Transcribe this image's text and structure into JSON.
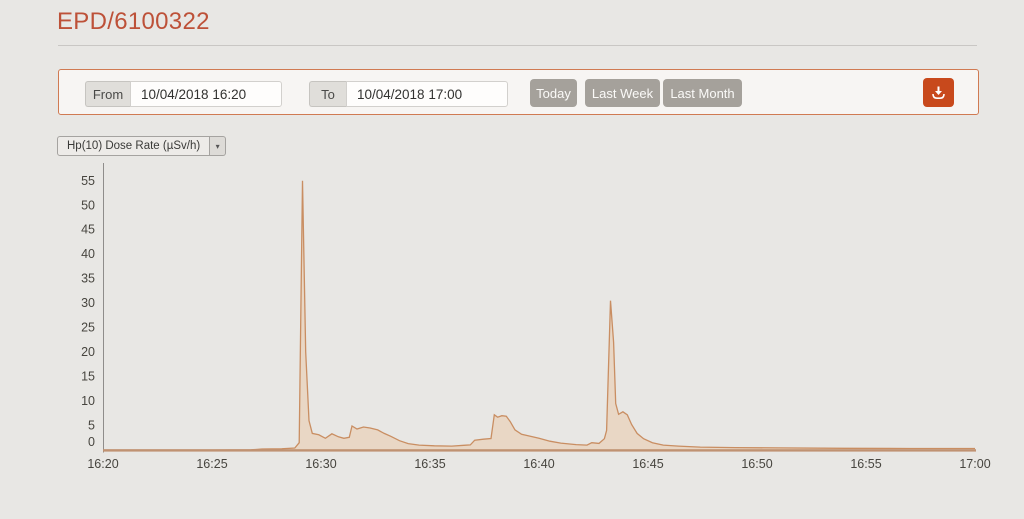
{
  "page": {
    "title": "EPD/6100322",
    "background_color": "#e8e7e4",
    "accent_color": "#bd5138"
  },
  "toolbar": {
    "border_color": "#d07a52",
    "from": {
      "label": "From",
      "value": "10/04/2018 16:20"
    },
    "to": {
      "label": "To",
      "value": "10/04/2018 17:00"
    },
    "buttons": [
      {
        "label": "Today"
      },
      {
        "label": "Last Week"
      },
      {
        "label": "Last Month"
      }
    ],
    "download": {
      "icon": "download-icon",
      "color": "#c8491c"
    }
  },
  "series_selector": {
    "value": "Hp(10) Dose Rate (µSv/h)",
    "arrow_icon": "chevron-down-icon"
  },
  "chart_data": {
    "type": "area",
    "title": "",
    "xlabel": "",
    "ylabel": "Hp(10) Dose Rate (µSv/h)",
    "x_axis": "time of day, 10/04/2018",
    "x_start": "16:20",
    "x_end": "17:00",
    "x_ticks": [
      "16:20",
      "16:25",
      "16:30",
      "16:35",
      "16:40",
      "16:45",
      "16:50",
      "16:55",
      "17:00"
    ],
    "y_ticks": [
      0,
      5,
      10,
      15,
      20,
      25,
      30,
      35,
      40,
      45,
      50,
      55
    ],
    "ylim": [
      0,
      58
    ],
    "xlim_minutes_after_1620": [
      0,
      40
    ],
    "grid": false,
    "legend": "none",
    "line_color": "#c98e62",
    "fill_color": "#e9d6c3",
    "x_axis_color": "#c09272",
    "y_axis_color": "#8f8d8b",
    "series": [
      {
        "name": "Hp(10) Dose Rate (µSv/h)",
        "units": "µSv/h",
        "points_minutes_vs_value": [
          [
            0,
            0
          ],
          [
            5,
            0
          ],
          [
            6.8,
            0.05
          ],
          [
            7.3,
            0.2
          ],
          [
            8.2,
            0.25
          ],
          [
            8.8,
            0.4
          ],
          [
            9.0,
            1.5
          ],
          [
            9.15,
            55
          ],
          [
            9.3,
            20
          ],
          [
            9.45,
            6
          ],
          [
            9.6,
            3.4
          ],
          [
            9.9,
            3.1
          ],
          [
            10.2,
            2.4
          ],
          [
            10.5,
            3.3
          ],
          [
            10.8,
            2.7
          ],
          [
            11.05,
            2.4
          ],
          [
            11.3,
            2.6
          ],
          [
            11.42,
            4.9
          ],
          [
            11.65,
            4.3
          ],
          [
            11.95,
            4.7
          ],
          [
            12.25,
            4.5
          ],
          [
            12.6,
            4.1
          ],
          [
            12.9,
            3.4
          ],
          [
            13.2,
            2.8
          ],
          [
            13.6,
            1.9
          ],
          [
            14.0,
            1.3
          ],
          [
            14.5,
            1.0
          ],
          [
            15.2,
            0.85
          ],
          [
            16.0,
            0.8
          ],
          [
            16.55,
            0.95
          ],
          [
            16.85,
            1.05
          ],
          [
            17.05,
            2.0
          ],
          [
            17.45,
            2.2
          ],
          [
            17.8,
            2.35
          ],
          [
            17.95,
            7.2
          ],
          [
            18.1,
            6.7
          ],
          [
            18.3,
            7.0
          ],
          [
            18.5,
            6.9
          ],
          [
            18.68,
            5.8
          ],
          [
            18.9,
            4.1
          ],
          [
            19.2,
            3.2
          ],
          [
            19.6,
            2.8
          ],
          [
            20.0,
            2.4
          ],
          [
            20.5,
            1.8
          ],
          [
            21.0,
            1.4
          ],
          [
            21.7,
            1.1
          ],
          [
            22.2,
            1.0
          ],
          [
            22.42,
            1.5
          ],
          [
            22.75,
            1.35
          ],
          [
            23.0,
            2.3
          ],
          [
            23.1,
            4
          ],
          [
            23.28,
            30.5
          ],
          [
            23.42,
            22
          ],
          [
            23.52,
            9.5
          ],
          [
            23.65,
            7.3
          ],
          [
            23.85,
            7.8
          ],
          [
            24.05,
            7.2
          ],
          [
            24.25,
            5.2
          ],
          [
            24.5,
            3.4
          ],
          [
            24.8,
            2.3
          ],
          [
            25.2,
            1.5
          ],
          [
            25.7,
            1.0
          ],
          [
            26.4,
            0.8
          ],
          [
            27.4,
            0.6
          ],
          [
            29,
            0.5
          ],
          [
            31,
            0.42
          ],
          [
            34,
            0.35
          ],
          [
            37,
            0.3
          ],
          [
            40,
            0.3
          ]
        ]
      }
    ]
  }
}
